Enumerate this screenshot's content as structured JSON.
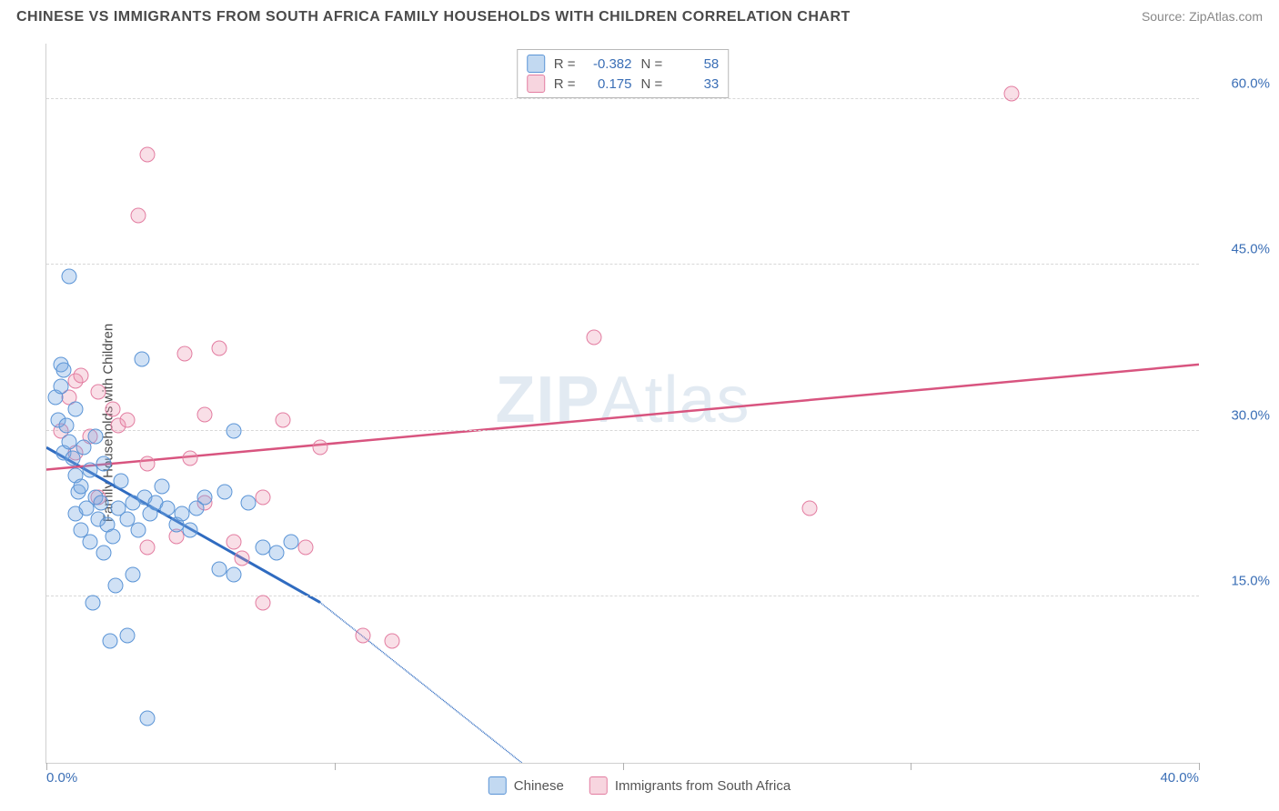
{
  "title": "CHINESE VS IMMIGRANTS FROM SOUTH AFRICA FAMILY HOUSEHOLDS WITH CHILDREN CORRELATION CHART",
  "source_label": "Source: ZipAtlas.com",
  "ylabel": "Family Households with Children",
  "watermark": {
    "bold": "ZIP",
    "rest": "Atlas"
  },
  "series_a": {
    "name": "Chinese",
    "color_fill": "#78aae1",
    "color_stroke": "#5a94d6",
    "trend_color": "#2f6bc0",
    "r_value": "-0.382",
    "n_value": "58",
    "trend": {
      "x1": 0.0,
      "y1": 28.5,
      "x2": 9.5,
      "y2": 14.5,
      "dash_to_x": 16.5,
      "dash_to_y": 0.0
    },
    "points": [
      {
        "x": 0.3,
        "y": 33.0
      },
      {
        "x": 0.4,
        "y": 31.0
      },
      {
        "x": 0.5,
        "y": 36.0
      },
      {
        "x": 0.5,
        "y": 34.0
      },
      {
        "x": 0.6,
        "y": 35.5
      },
      {
        "x": 0.6,
        "y": 28.0
      },
      {
        "x": 0.7,
        "y": 30.5
      },
      {
        "x": 0.8,
        "y": 29.0
      },
      {
        "x": 0.8,
        "y": 44.0
      },
      {
        "x": 0.9,
        "y": 27.5
      },
      {
        "x": 1.0,
        "y": 26.0
      },
      {
        "x": 1.0,
        "y": 22.5
      },
      {
        "x": 1.0,
        "y": 32.0
      },
      {
        "x": 1.1,
        "y": 24.5
      },
      {
        "x": 1.2,
        "y": 21.0
      },
      {
        "x": 1.2,
        "y": 25.0
      },
      {
        "x": 1.3,
        "y": 28.5
      },
      {
        "x": 1.4,
        "y": 23.0
      },
      {
        "x": 1.5,
        "y": 20.0
      },
      {
        "x": 1.5,
        "y": 26.5
      },
      {
        "x": 1.6,
        "y": 14.5
      },
      {
        "x": 1.7,
        "y": 24.0
      },
      {
        "x": 1.7,
        "y": 29.5
      },
      {
        "x": 1.8,
        "y": 22.0
      },
      {
        "x": 1.9,
        "y": 23.5
      },
      {
        "x": 2.0,
        "y": 19.0
      },
      {
        "x": 2.0,
        "y": 27.0
      },
      {
        "x": 2.1,
        "y": 21.5
      },
      {
        "x": 2.2,
        "y": 11.0
      },
      {
        "x": 2.3,
        "y": 20.5
      },
      {
        "x": 2.4,
        "y": 16.0
      },
      {
        "x": 2.5,
        "y": 23.0
      },
      {
        "x": 2.6,
        "y": 25.5
      },
      {
        "x": 2.8,
        "y": 22.0
      },
      {
        "x": 2.8,
        "y": 11.5
      },
      {
        "x": 3.0,
        "y": 23.5
      },
      {
        "x": 3.0,
        "y": 17.0
      },
      {
        "x": 3.2,
        "y": 21.0
      },
      {
        "x": 3.3,
        "y": 36.5
      },
      {
        "x": 3.4,
        "y": 24.0
      },
      {
        "x": 3.5,
        "y": 4.0
      },
      {
        "x": 3.6,
        "y": 22.5
      },
      {
        "x": 3.8,
        "y": 23.5
      },
      {
        "x": 4.0,
        "y": 25.0
      },
      {
        "x": 4.2,
        "y": 23.0
      },
      {
        "x": 4.5,
        "y": 21.5
      },
      {
        "x": 4.7,
        "y": 22.5
      },
      {
        "x": 5.0,
        "y": 21.0
      },
      {
        "x": 5.2,
        "y": 23.0
      },
      {
        "x": 5.5,
        "y": 24.0
      },
      {
        "x": 6.0,
        "y": 17.5
      },
      {
        "x": 6.2,
        "y": 24.5
      },
      {
        "x": 6.5,
        "y": 17.0
      },
      {
        "x": 7.0,
        "y": 23.5
      },
      {
        "x": 7.5,
        "y": 19.5
      },
      {
        "x": 8.0,
        "y": 19.0
      },
      {
        "x": 8.5,
        "y": 20.0
      },
      {
        "x": 6.5,
        "y": 30.0
      }
    ]
  },
  "series_b": {
    "name": "Immigrants from South Africa",
    "color_fill": "#eb96af",
    "color_stroke": "#e37da1",
    "trend_color": "#d8547f",
    "r_value": "0.175",
    "n_value": "33",
    "trend": {
      "x1": 0.0,
      "y1": 26.5,
      "x2": 40.0,
      "y2": 36.0
    },
    "points": [
      {
        "x": 0.5,
        "y": 30.0
      },
      {
        "x": 0.8,
        "y": 33.0
      },
      {
        "x": 1.0,
        "y": 28.0
      },
      {
        "x": 1.0,
        "y": 34.5
      },
      {
        "x": 1.2,
        "y": 35.0
      },
      {
        "x": 1.5,
        "y": 29.5
      },
      {
        "x": 1.8,
        "y": 33.5
      },
      {
        "x": 1.8,
        "y": 24.0
      },
      {
        "x": 2.3,
        "y": 32.0
      },
      {
        "x": 2.5,
        "y": 30.5
      },
      {
        "x": 2.8,
        "y": 31.0
      },
      {
        "x": 3.5,
        "y": 55.0
      },
      {
        "x": 3.2,
        "y": 49.5
      },
      {
        "x": 3.5,
        "y": 27.0
      },
      {
        "x": 3.5,
        "y": 19.5
      },
      {
        "x": 4.5,
        "y": 20.5
      },
      {
        "x": 4.8,
        "y": 37.0
      },
      {
        "x": 5.0,
        "y": 27.5
      },
      {
        "x": 5.5,
        "y": 31.5
      },
      {
        "x": 5.5,
        "y": 23.5
      },
      {
        "x": 6.0,
        "y": 37.5
      },
      {
        "x": 6.5,
        "y": 20.0
      },
      {
        "x": 6.8,
        "y": 18.5
      },
      {
        "x": 7.5,
        "y": 24.0
      },
      {
        "x": 7.5,
        "y": 14.5
      },
      {
        "x": 8.2,
        "y": 31.0
      },
      {
        "x": 9.0,
        "y": 19.5
      },
      {
        "x": 9.5,
        "y": 28.5
      },
      {
        "x": 11.0,
        "y": 11.5
      },
      {
        "x": 12.0,
        "y": 11.0
      },
      {
        "x": 19.0,
        "y": 38.5
      },
      {
        "x": 26.5,
        "y": 23.0
      },
      {
        "x": 33.5,
        "y": 60.5
      }
    ]
  },
  "axes": {
    "xlim": [
      0,
      40
    ],
    "ylim": [
      0,
      65
    ],
    "xticks": [
      {
        "v": 0,
        "label": "0.0%"
      },
      {
        "v": 10,
        "label": ""
      },
      {
        "v": 20,
        "label": ""
      },
      {
        "v": 30,
        "label": ""
      },
      {
        "v": 40,
        "label": "40.0%"
      }
    ],
    "yticks": [
      {
        "v": 15,
        "label": "15.0%"
      },
      {
        "v": 30,
        "label": "30.0%"
      },
      {
        "v": 45,
        "label": "45.0%"
      },
      {
        "v": 60,
        "label": "60.0%"
      }
    ],
    "tick_color": "#3b6fb6",
    "grid_color": "#d8d8d8",
    "axis_color": "#d0d0d0"
  },
  "legend_top_labels": {
    "r": "R =",
    "n": "N ="
  }
}
